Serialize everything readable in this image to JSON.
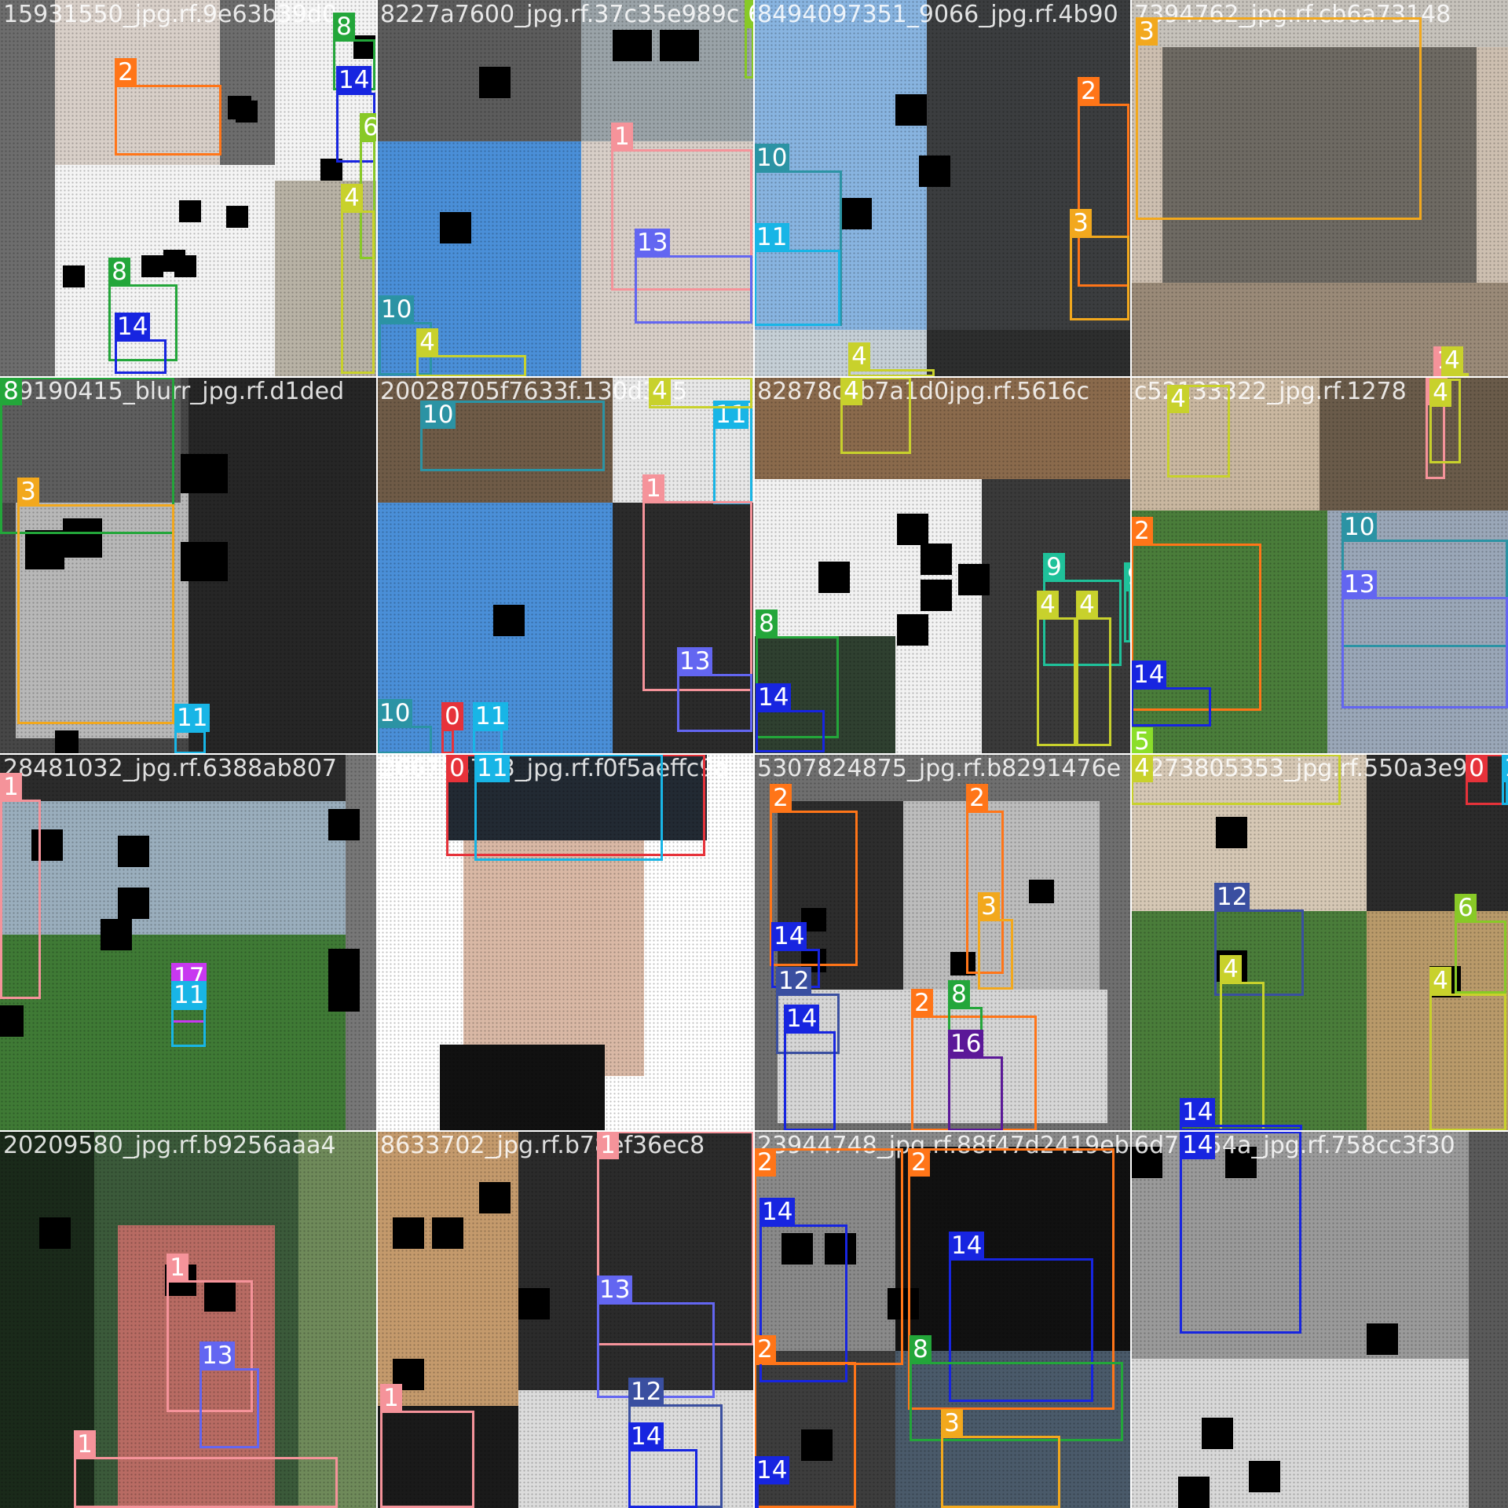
{
  "mosaic_title": "",
  "class_colors": {
    "0": "#e6323a",
    "1": "#f5939a",
    "2": "#ff7518",
    "3": "#f2a81d",
    "4": "#c8d12c",
    "5": "#8bde2a",
    "6": "#88c927",
    "8": "#23a63a",
    "9": "#1fc19a",
    "10": "#2b93a4",
    "11": "#18b5e6",
    "12": "#3a4fa0",
    "13": "#6366f1",
    "14": "#1725e0",
    "16": "#5b1898",
    "17": "#c838f0"
  },
  "tiles": [
    {
      "id": "t0",
      "name": "15931550_jpg.rf.9e63b39d0",
      "colors": [
        "#6d6d6d",
        "#d8cfc8",
        "#f4f4f4",
        "#b8b2a5"
      ],
      "boxes": [
        {
          "cls": "2",
          "l": "2"
        },
        {
          "cls": "8",
          "l": "8"
        },
        {
          "cls": "14",
          "l": "14"
        },
        {
          "cls": "6",
          "l": "6"
        },
        {
          "cls": "4",
          "l": "4"
        },
        {
          "cls": "8",
          "l": "8"
        },
        {
          "cls": "14",
          "l": "14"
        }
      ]
    },
    {
      "id": "t1",
      "name": "8227a7600_jpg.rf.37c35e989c",
      "colors": [
        "#5c5c5c",
        "#4a8fd8",
        "#d8cfc8",
        "#9aa3a8"
      ],
      "boxes": [
        {
          "cls": "6",
          "l": "6"
        },
        {
          "cls": "1",
          "l": "1"
        },
        {
          "cls": "13",
          "l": "13"
        },
        {
          "cls": "10",
          "l": "10"
        },
        {
          "cls": "4",
          "l": "4"
        }
      ]
    },
    {
      "id": "t2",
      "name": "8494097351_9066_jpg.rf.4b90",
      "colors": [
        "#88b4e0",
        "#3b3d3f",
        "#c5cfd6",
        "#2d2e2e"
      ],
      "boxes": [
        {
          "cls": "2",
          "l": "2"
        },
        {
          "cls": "10",
          "l": "10"
        },
        {
          "cls": "11",
          "l": "11"
        },
        {
          "cls": "3",
          "l": "3"
        },
        {
          "cls": "4",
          "l": "4"
        }
      ]
    },
    {
      "id": "t3",
      "name": "7394762_jpg.rf.cb6a73148",
      "colors": [
        "#cdbfb0",
        "#9a8a78",
        "#c6c2bb",
        "#6e6a63"
      ],
      "boxes": [
        {
          "cls": "3",
          "l": "3"
        },
        {
          "cls": "1",
          "l": "1"
        },
        {
          "cls": "4",
          "l": "4"
        }
      ]
    },
    {
      "id": "t4",
      "name": "39190415_blurr_jpg.rf.d1ded",
      "colors": [
        "#474747",
        "#262626",
        "#b8b8b8",
        "#5e5e5e"
      ],
      "boxes": [
        {
          "cls": "8",
          "l": "8"
        },
        {
          "cls": "3",
          "l": "3"
        },
        {
          "cls": "11",
          "l": "11"
        }
      ]
    },
    {
      "id": "t5",
      "name": "20028705f7633f.130d315",
      "colors": [
        "#4a8fd8",
        "#6f5b47",
        "#e8e8e8",
        "#2b2b2b"
      ],
      "boxes": [
        {
          "cls": "10",
          "l": "10"
        },
        {
          "cls": "11",
          "l": "11"
        },
        {
          "cls": "4",
          "l": "4"
        },
        {
          "cls": "1",
          "l": "1"
        },
        {
          "cls": "13",
          "l": "13"
        },
        {
          "cls": "10",
          "l": "10"
        },
        {
          "cls": "0",
          "l": "0"
        },
        {
          "cls": "11",
          "l": "11"
        }
      ]
    },
    {
      "id": "t6",
      "name": "82878cab7a1d0jpg.rf.5616c",
      "colors": [
        "#f2f2f2",
        "#8a6a4c",
        "#3a3a3a",
        "#2f4030"
      ],
      "boxes": [
        {
          "cls": "4",
          "l": "4"
        },
        {
          "cls": "9",
          "l": "9"
        },
        {
          "cls": "9",
          "l": "9"
        },
        {
          "cls": "4",
          "l": "4"
        },
        {
          "cls": "4",
          "l": "4"
        },
        {
          "cls": "8",
          "l": "8"
        },
        {
          "cls": "14",
          "l": "14"
        }
      ]
    },
    {
      "id": "t7",
      "name": "c52133322_jpg.rf.1278",
      "colors": [
        "#6a5b4a",
        "#4a7d3a",
        "#9aa7b8",
        "#c9b7a0"
      ],
      "boxes": [
        {
          "cls": "4",
          "l": "4"
        },
        {
          "cls": "1",
          "l": "1"
        },
        {
          "cls": "4",
          "l": "4"
        },
        {
          "cls": "2",
          "l": "2"
        },
        {
          "cls": "10",
          "l": "10"
        },
        {
          "cls": "13",
          "l": "13"
        },
        {
          "cls": "14",
          "l": "14"
        },
        {
          "cls": "5",
          "l": "5"
        }
      ]
    },
    {
      "id": "t8",
      "name": "28481032_jpg.rf.6388ab807",
      "colors": [
        "#9aaebd",
        "#3f7a35",
        "#777777",
        "#2b2b2b"
      ],
      "boxes": [
        {
          "cls": "1",
          "l": "1"
        },
        {
          "cls": "17",
          "l": "17"
        },
        {
          "cls": "11",
          "l": "11"
        }
      ]
    },
    {
      "id": "t9",
      "name": "266788763_jpg.rf.f0f5aeffc9a",
      "colors": [
        "#ffffff",
        "#222a33",
        "#d9b8a5",
        "#111111"
      ],
      "boxes": [
        {
          "cls": "0",
          "l": "0"
        },
        {
          "cls": "11",
          "l": "11"
        }
      ]
    },
    {
      "id": "t10",
      "name": "5307824875_jpg.rf.b8291476e",
      "colors": [
        "#6f6f6f",
        "#2d2d2d",
        "#bdbdbd",
        "#d6d6d6"
      ],
      "boxes": [
        {
          "cls": "2",
          "l": "2"
        },
        {
          "cls": "2",
          "l": "2"
        },
        {
          "cls": "3",
          "l": "3"
        },
        {
          "cls": "14",
          "l": "14"
        },
        {
          "cls": "12",
          "l": "12"
        },
        {
          "cls": "14",
          "l": "14"
        },
        {
          "cls": "2",
          "l": "2"
        },
        {
          "cls": "8",
          "l": "8"
        },
        {
          "cls": "16",
          "l": "16"
        }
      ]
    },
    {
      "id": "t11",
      "name": "4273805353_jpg.rf.550a3e9a",
      "colors": [
        "#d6c8b5",
        "#4a7d3a",
        "#b99a6a",
        "#2b2b2b"
      ],
      "boxes": [
        {
          "cls": "4",
          "l": "4"
        },
        {
          "cls": "0",
          "l": "0"
        },
        {
          "cls": "11",
          "l": "11"
        },
        {
          "cls": "12",
          "l": "12"
        },
        {
          "cls": "6",
          "l": "6"
        },
        {
          "cls": "4",
          "l": "4"
        },
        {
          "cls": "4",
          "l": "4"
        },
        {
          "cls": "14",
          "l": "14"
        }
      ]
    },
    {
      "id": "t12",
      "name": "20209580_jpg.rf.b9256aaa4",
      "colors": [
        "#3b5a3a",
        "#b86b63",
        "#1a2a1a",
        "#6f8a5a"
      ],
      "boxes": [
        {
          "cls": "1",
          "l": "1"
        },
        {
          "cls": "13",
          "l": "13"
        },
        {
          "cls": "1",
          "l": "1"
        }
      ]
    },
    {
      "id": "t13",
      "name": "8633702_jpg.rf.b78ef36ec8",
      "colors": [
        "#c49a6c",
        "#2b2b2b",
        "#dcdcdc",
        "#1a1a1a"
      ],
      "boxes": [
        {
          "cls": "1",
          "l": "1"
        },
        {
          "cls": "13",
          "l": "13"
        },
        {
          "cls": "12",
          "l": "12"
        },
        {
          "cls": "14",
          "l": "14"
        },
        {
          "cls": "1",
          "l": "1"
        }
      ]
    },
    {
      "id": "t14",
      "name": "23944748_jpg.rf.88f47d2419eb",
      "colors": [
        "#8a8a8a",
        "#111111",
        "#3d3d3d",
        "#4a5a6a"
      ],
      "boxes": [
        {
          "cls": "2",
          "l": "2"
        },
        {
          "cls": "2",
          "l": "2"
        },
        {
          "cls": "14",
          "l": "14"
        },
        {
          "cls": "14",
          "l": "14"
        },
        {
          "cls": "2",
          "l": "2"
        },
        {
          "cls": "8",
          "l": "8"
        },
        {
          "cls": "3",
          "l": "3"
        },
        {
          "cls": "14",
          "l": "14"
        }
      ]
    },
    {
      "id": "t15",
      "name": "6d76c54a_jpg.rf.758cc3f30",
      "colors": [
        "#ececec",
        "#9a9a9a",
        "#d8d8d8",
        "#5a5a5a"
      ],
      "boxes": [
        {
          "cls": "14",
          "l": "14"
        }
      ]
    }
  ]
}
